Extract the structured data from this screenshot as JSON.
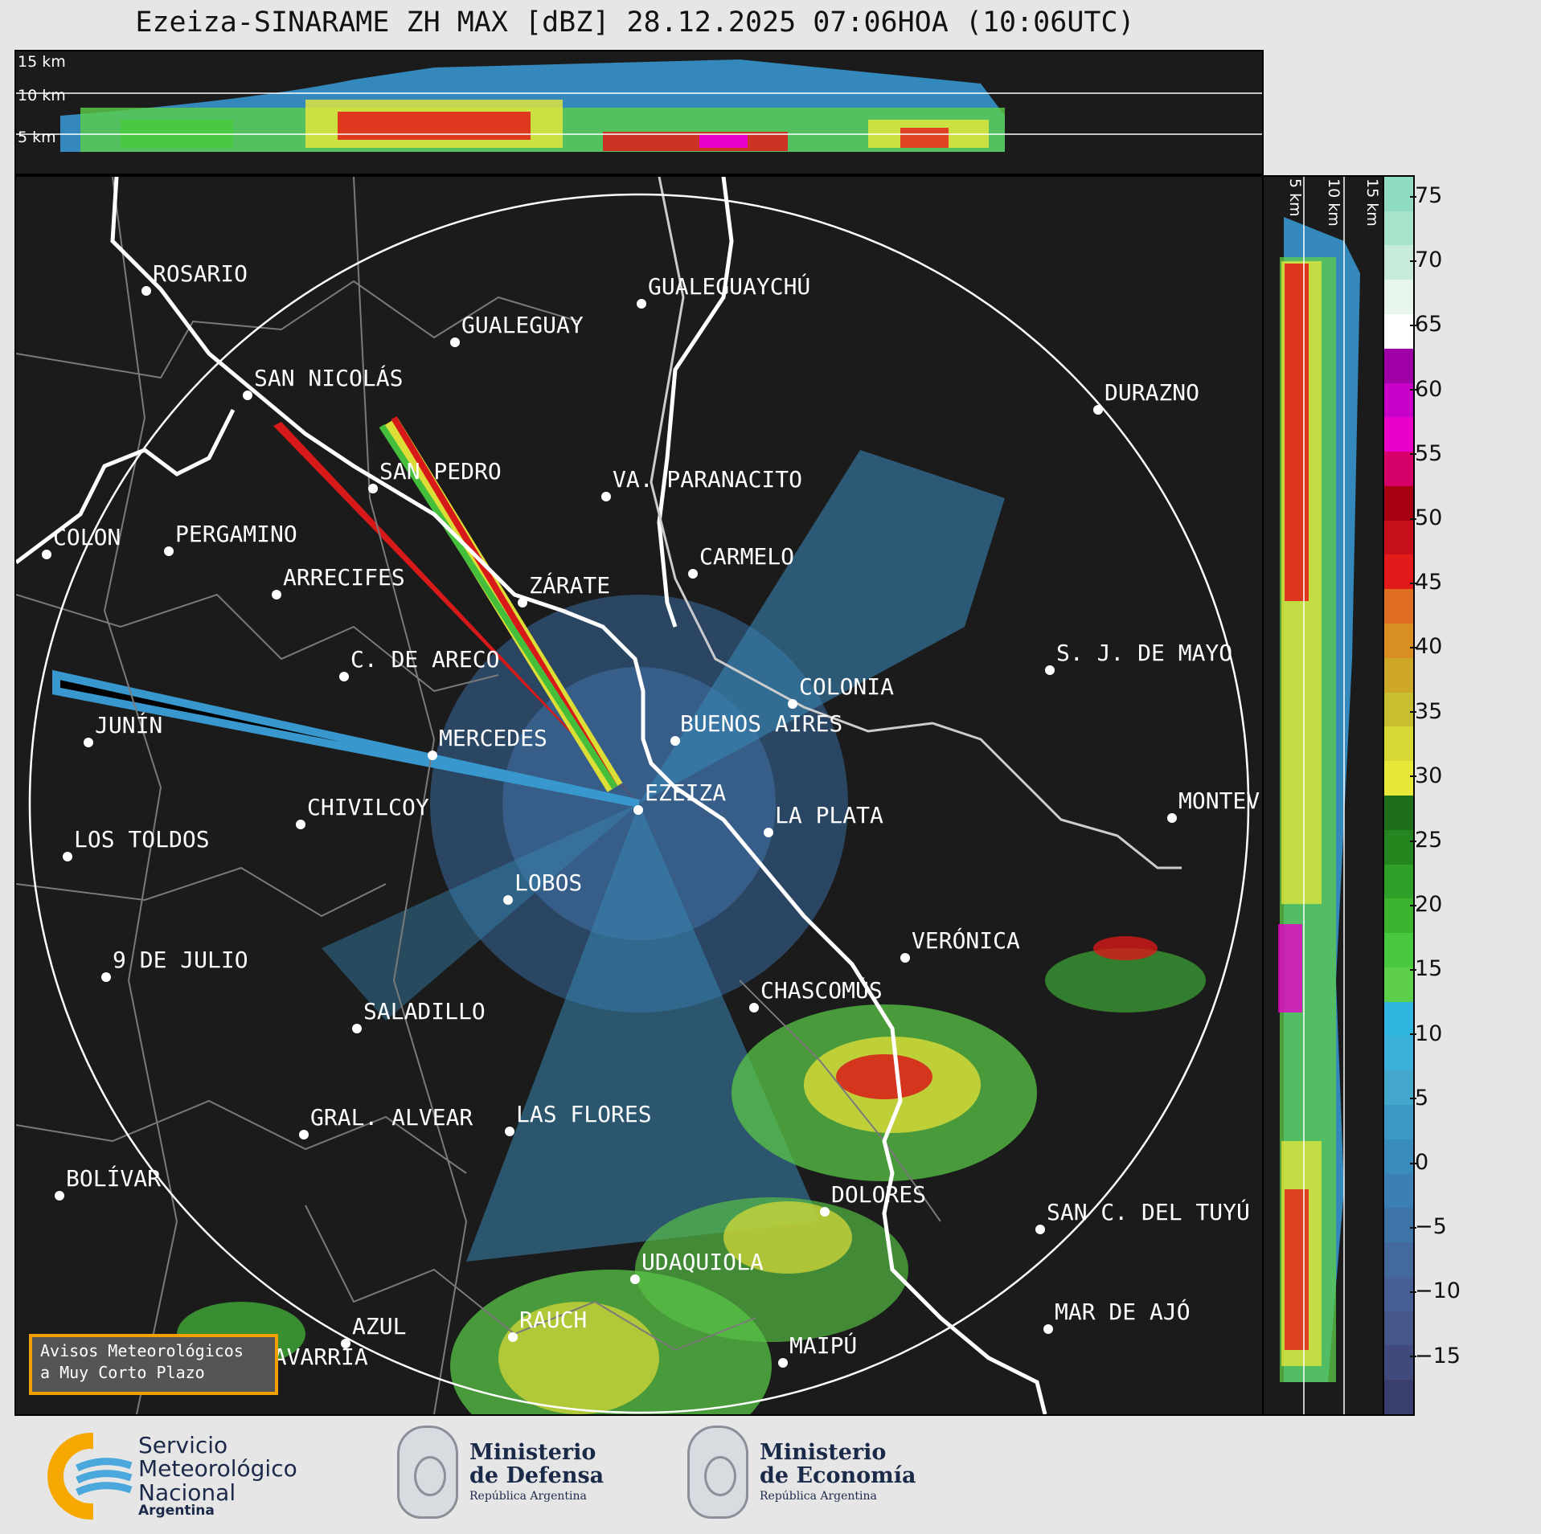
{
  "title": "Ezeiza-SINARAME ZH MAX [dBZ] 28.12.2025 07:06HOA (10:06UTC)",
  "altitude_labels": [
    "15 km",
    "10 km",
    "5 km"
  ],
  "side_altitude_labels": [
    "5 km",
    "10 km",
    "15 km"
  ],
  "cities": [
    {
      "name": "ROSARIO"
    },
    {
      "name": "GUALEGUAYCHÚ"
    },
    {
      "name": "GUALEGUAY"
    },
    {
      "name": "SAN NICOLÁS"
    },
    {
      "name": "DURAZNO"
    },
    {
      "name": "SAN PEDRO"
    },
    {
      "name": "VA. PARANACITO"
    },
    {
      "name": "COLON"
    },
    {
      "name": "PERGAMINO"
    },
    {
      "name": "CARMELO"
    },
    {
      "name": "ARRECIFES"
    },
    {
      "name": "ZÁRATE"
    },
    {
      "name": "S. J. DE MAYO"
    },
    {
      "name": "C. DE ARECO"
    },
    {
      "name": "COLONIA"
    },
    {
      "name": "JUNÍN"
    },
    {
      "name": "BUENOS AIRES"
    },
    {
      "name": "MERCEDES"
    },
    {
      "name": "MONTEVIDEO"
    },
    {
      "name": "EZEIZA"
    },
    {
      "name": "CHIVILCOY"
    },
    {
      "name": "LA PLATA"
    },
    {
      "name": "LOS TOLDOS"
    },
    {
      "name": "LOBOS"
    },
    {
      "name": "VERÓNICA"
    },
    {
      "name": "9 DE JULIO"
    },
    {
      "name": "CHASCOMÚS"
    },
    {
      "name": "SALADILLO"
    },
    {
      "name": "GRAL. ALVEAR"
    },
    {
      "name": "LAS FLORES"
    },
    {
      "name": "BOLÍVAR"
    },
    {
      "name": "DOLORES"
    },
    {
      "name": "SAN C. DEL TUYÚ"
    },
    {
      "name": "UDAQUIOLA"
    },
    {
      "name": "MAR DE AJÓ"
    },
    {
      "name": "AZUL"
    },
    {
      "name": "RAUCH"
    },
    {
      "name": "OLAVARRÍA"
    },
    {
      "name": "MAIPÚ"
    }
  ],
  "colorbar": {
    "ticks": [
      "75",
      "70",
      "65",
      "60",
      "55",
      "50",
      "45",
      "40",
      "35",
      "30",
      "25",
      "20",
      "15",
      "10",
      "5",
      "0",
      "−5",
      "−10",
      "−15"
    ],
    "colors": [
      "#3a3f6e",
      "#404a7c",
      "#44568a",
      "#465f94",
      "#44699e",
      "#3f74a8",
      "#3a80b2",
      "#3a8cbc",
      "#3c98c4",
      "#43a6cc",
      "#3bb0d8",
      "#2fb7e0",
      "#5dcf4a",
      "#48c93e",
      "#3bb530",
      "#2e9f28",
      "#25861f",
      "#1d6f19",
      "#e8e83a",
      "#d8d836",
      "#c8c030",
      "#d0a828",
      "#d88e20",
      "#e06e20",
      "#e21a1a",
      "#c8101a",
      "#a80010",
      "#d6006a",
      "#e800c8",
      "#c800c8",
      "#a000a8",
      "#ffffff",
      "#e8f6ee",
      "#c8ecdc",
      "#a8e4cc",
      "#90dcc0"
    ]
  },
  "warning_box": {
    "line1": "Avisos Meteorológicos",
    "line2": "a Muy Corto Plazo"
  },
  "footer": {
    "smn": {
      "line1": "Servicio",
      "line2": "Meteorológico",
      "line3": "Nacional",
      "line4": "Argentina"
    },
    "defensa": {
      "line1": "Ministerio",
      "line2": "de Defensa",
      "line3": "República Argentina"
    },
    "economia": {
      "line1": "Ministerio",
      "line2": "de Economía",
      "line3": "República Argentina"
    }
  }
}
